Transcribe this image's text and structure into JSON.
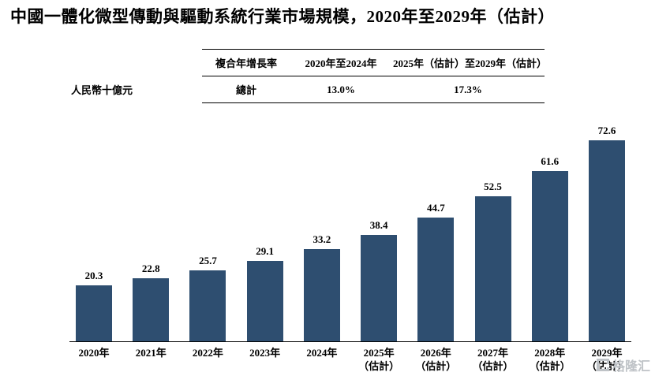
{
  "watermark": "格隆汇",
  "colors": {
    "bar": "#2e4e70",
    "axis": "#000000",
    "watermark": "#bfc3c7"
  },
  "chart_data": {
    "type": "bar",
    "title": "中國一體化微型傳動與驅動系統行業市場規模，2020年至2029年（估計）",
    "ylabel": "人民幣十億元",
    "ylim": [
      0,
      75
    ],
    "grid": false,
    "legend": "none",
    "bar_color": "#2e4e70",
    "categories": [
      "2020年",
      "2021年",
      "2022年",
      "2023年",
      "2024年",
      "2025年",
      "2026年",
      "2027年",
      "2028年",
      "2029年"
    ],
    "estimate_note": "（估計）",
    "estimate_from_index": 5,
    "values": [
      20.3,
      22.8,
      25.7,
      29.1,
      33.2,
      38.4,
      44.7,
      52.5,
      61.6,
      72.6
    ],
    "cagr": {
      "header": [
        "複合年增長率",
        "2020年至2024年",
        "2025年（估計）至2029年（估計）"
      ],
      "rows": [
        [
          "總計",
          "13.0%",
          "17.3%"
        ]
      ]
    }
  }
}
